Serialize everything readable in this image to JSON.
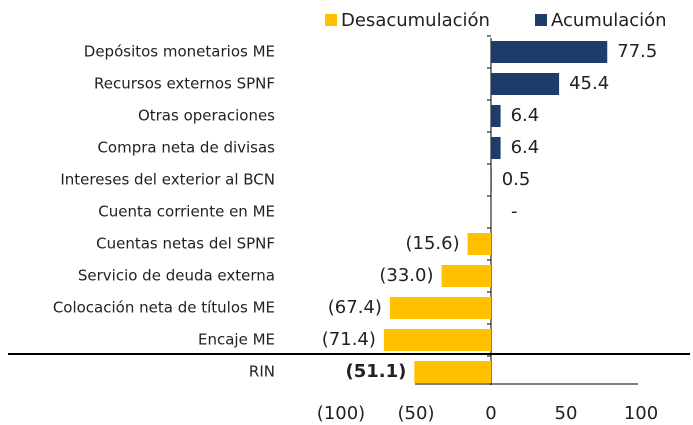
{
  "chart_data": {
    "type": "bar",
    "orientation": "horizontal",
    "categories": [
      "Depósitos monetarios ME",
      "Recursos externos SPNF",
      "Otras operaciones",
      "Compra neta de divisas",
      "Intereses del exterior al BCN",
      "Cuenta corriente en ME",
      "Cuentas netas del SPNF",
      "Servicio de deuda externa",
      "Colocación neta de títulos ME",
      "Encaje ME",
      "RIN"
    ],
    "values": [
      77.5,
      45.4,
      6.4,
      6.4,
      0.5,
      0,
      -15.6,
      -33.0,
      -67.4,
      -71.4,
      -51.1
    ],
    "value_labels": [
      "77.5",
      "45.4",
      "6.4",
      "6.4",
      "0.5",
      "-",
      "(15.6)",
      "(33.0)",
      "(67.4)",
      "(71.4)",
      "(51.1)"
    ],
    "legend": [
      {
        "name": "Desacumulación",
        "color": "#ffc000"
      },
      {
        "name": "Acumulación",
        "color": "#1f3d6b"
      }
    ],
    "xlim": [
      -100,
      100
    ],
    "xticks": [
      {
        "value": -100,
        "label": "(100)"
      },
      {
        "value": -50,
        "label": "(50)"
      },
      0,
      50,
      100
    ]
  }
}
